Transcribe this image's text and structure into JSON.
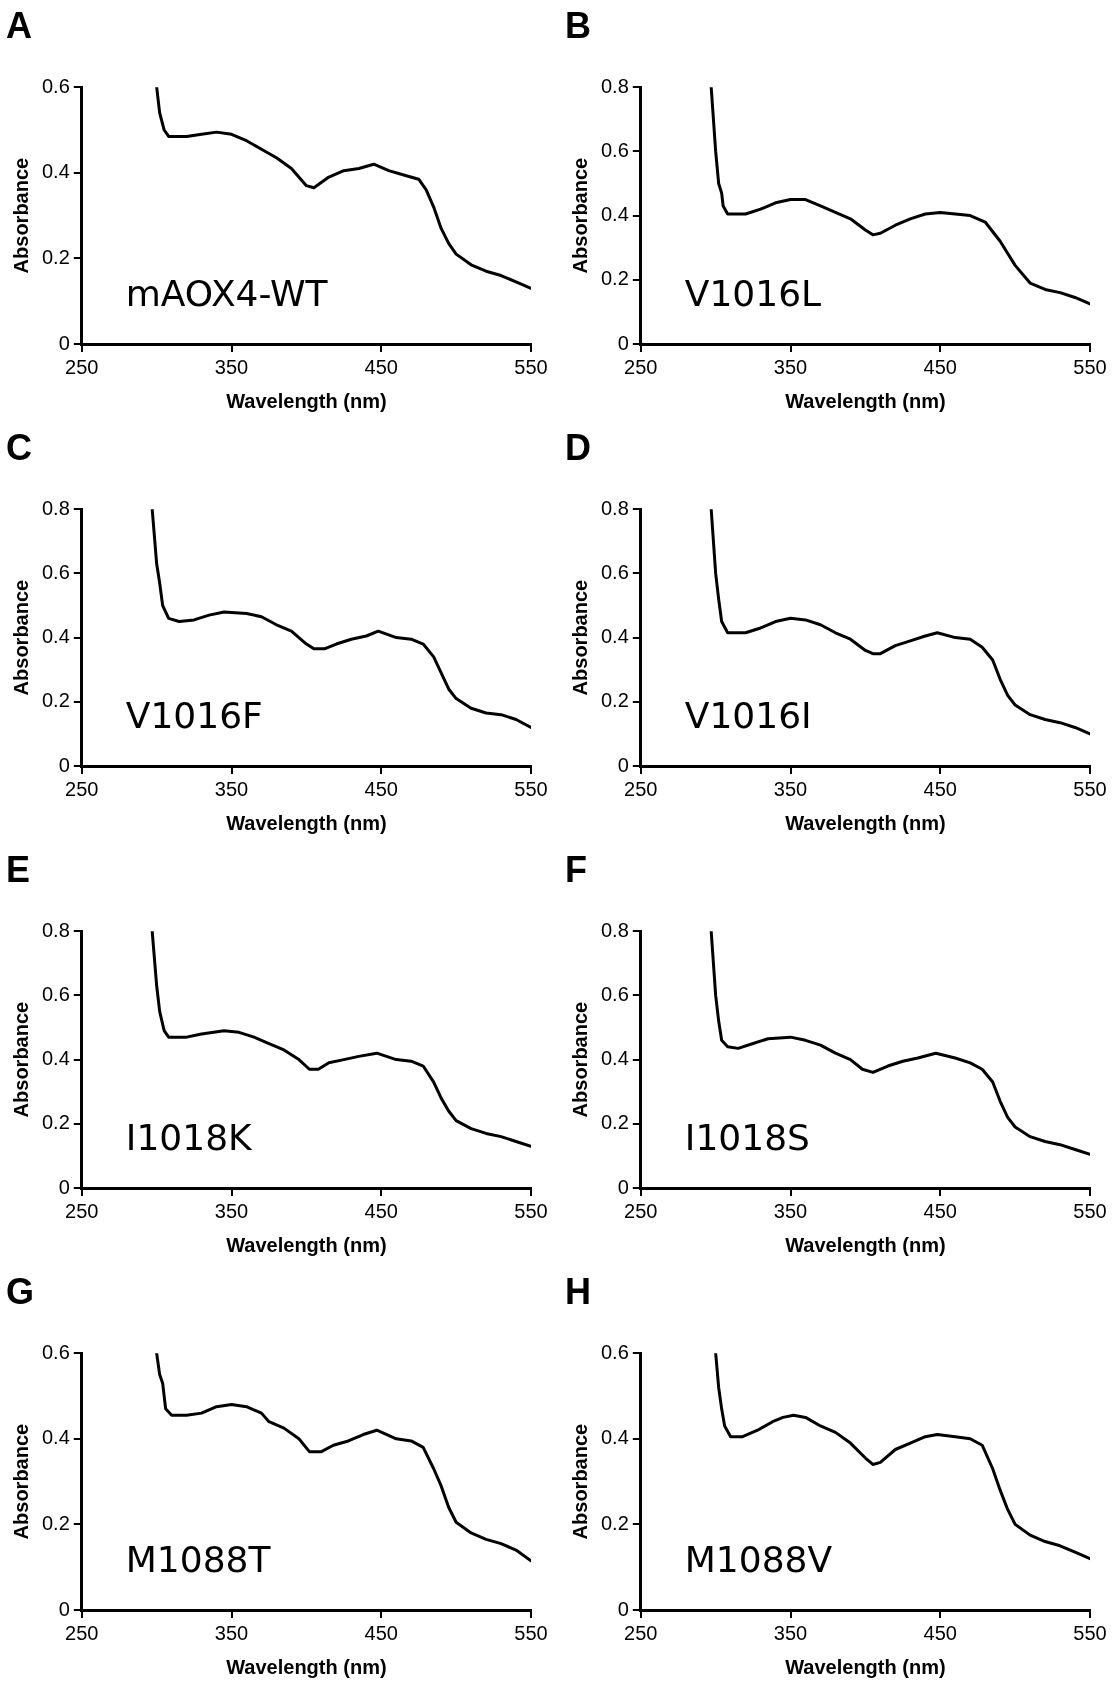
{
  "chart_data": [
    {
      "type": "line",
      "title": "A",
      "xlabel": "Wavelength (nm)",
      "ylabel": "Absorbance",
      "annotations": [
        "mAOX4-WT"
      ],
      "xlim": [
        250,
        550
      ],
      "xticks": [
        250,
        350,
        450,
        550
      ],
      "ylim": [
        0,
        0.6
      ],
      "yticks": [
        0,
        0.2,
        0.4,
        0.6
      ],
      "grid": false,
      "legend": false,
      "marker": "none",
      "line_style": "solid",
      "series": [
        {
          "color": "#000000",
          "x": [
            300,
            302,
            305,
            308,
            320,
            330,
            340,
            350,
            360,
            370,
            380,
            390,
            400,
            405,
            415,
            425,
            435,
            445,
            455,
            465,
            475,
            480,
            485,
            490,
            495,
            500,
            510,
            520,
            530,
            540,
            550
          ],
          "values": [
            0.6,
            0.54,
            0.5,
            0.485,
            0.485,
            0.49,
            0.495,
            0.49,
            0.475,
            0.455,
            0.435,
            0.41,
            0.37,
            0.365,
            0.39,
            0.405,
            0.41,
            0.42,
            0.405,
            0.395,
            0.385,
            0.36,
            0.32,
            0.27,
            0.235,
            0.21,
            0.185,
            0.17,
            0.16,
            0.145,
            0.13
          ]
        }
      ]
    },
    {
      "type": "line",
      "title": "B",
      "xlabel": "Wavelength (nm)",
      "ylabel": "Absorbance",
      "annotations": [
        "V1016L"
      ],
      "xlim": [
        250,
        550
      ],
      "xticks": [
        250,
        350,
        450,
        550
      ],
      "ylim": [
        0,
        0.8
      ],
      "yticks": [
        0,
        0.2,
        0.4,
        0.6,
        0.8
      ],
      "grid": false,
      "legend": false,
      "marker": "none",
      "line_style": "solid",
      "series": [
        {
          "color": "#000000",
          "x": [
            297,
            300,
            302,
            304,
            305,
            308,
            320,
            330,
            340,
            350,
            360,
            370,
            380,
            390,
            400,
            405,
            410,
            420,
            430,
            440,
            450,
            460,
            470,
            480,
            490,
            500,
            510,
            520,
            530,
            540,
            550
          ],
          "values": [
            0.8,
            0.6,
            0.5,
            0.47,
            0.43,
            0.405,
            0.405,
            0.42,
            0.44,
            0.45,
            0.45,
            0.43,
            0.41,
            0.39,
            0.355,
            0.34,
            0.345,
            0.37,
            0.39,
            0.405,
            0.41,
            0.405,
            0.4,
            0.38,
            0.32,
            0.245,
            0.19,
            0.17,
            0.16,
            0.145,
            0.125
          ]
        }
      ]
    },
    {
      "type": "line",
      "title": "C",
      "xlabel": "Wavelength (nm)",
      "ylabel": "Absorbance",
      "annotations": [
        "V1016F"
      ],
      "xlim": [
        250,
        550
      ],
      "xticks": [
        250,
        350,
        450,
        550
      ],
      "ylim": [
        0,
        0.8
      ],
      "yticks": [
        0,
        0.2,
        0.4,
        0.6,
        0.8
      ],
      "grid": false,
      "legend": false,
      "marker": "none",
      "line_style": "solid",
      "series": [
        {
          "color": "#000000",
          "x": [
            297,
            300,
            302,
            304,
            308,
            315,
            325,
            335,
            345,
            360,
            370,
            380,
            390,
            400,
            405,
            412,
            420,
            430,
            440,
            448,
            460,
            470,
            478,
            485,
            490,
            495,
            500,
            510,
            520,
            530,
            540,
            550
          ],
          "values": [
            0.8,
            0.63,
            0.57,
            0.5,
            0.46,
            0.45,
            0.455,
            0.47,
            0.48,
            0.475,
            0.465,
            0.44,
            0.42,
            0.38,
            0.365,
            0.365,
            0.38,
            0.395,
            0.405,
            0.42,
            0.4,
            0.395,
            0.38,
            0.34,
            0.29,
            0.24,
            0.21,
            0.18,
            0.165,
            0.16,
            0.145,
            0.12
          ]
        }
      ]
    },
    {
      "type": "line",
      "title": "D",
      "xlabel": "Wavelength (nm)",
      "ylabel": "Absorbance",
      "annotations": [
        "V1016I"
      ],
      "xlim": [
        250,
        550
      ],
      "xticks": [
        250,
        350,
        450,
        550
      ],
      "ylim": [
        0,
        0.8
      ],
      "yticks": [
        0,
        0.2,
        0.4,
        0.6,
        0.8
      ],
      "grid": false,
      "legend": false,
      "marker": "none",
      "line_style": "solid",
      "series": [
        {
          "color": "#000000",
          "x": [
            297,
            300,
            302,
            304,
            308,
            320,
            330,
            340,
            350,
            360,
            370,
            380,
            390,
            400,
            405,
            410,
            420,
            430,
            440,
            448,
            460,
            470,
            478,
            485,
            490,
            495,
            500,
            510,
            520,
            530,
            540,
            550
          ],
          "values": [
            0.8,
            0.6,
            0.52,
            0.45,
            0.415,
            0.415,
            0.43,
            0.45,
            0.46,
            0.455,
            0.44,
            0.415,
            0.395,
            0.36,
            0.35,
            0.35,
            0.375,
            0.39,
            0.405,
            0.415,
            0.4,
            0.395,
            0.37,
            0.33,
            0.27,
            0.22,
            0.19,
            0.16,
            0.145,
            0.135,
            0.12,
            0.1
          ]
        }
      ]
    },
    {
      "type": "line",
      "title": "E",
      "xlabel": "Wavelength (nm)",
      "ylabel": "Absorbance",
      "annotations": [
        "I1018K"
      ],
      "xlim": [
        250,
        550
      ],
      "xticks": [
        250,
        350,
        450,
        550
      ],
      "ylim": [
        0,
        0.8
      ],
      "yticks": [
        0,
        0.2,
        0.4,
        0.6,
        0.8
      ],
      "grid": false,
      "legend": false,
      "marker": "none",
      "line_style": "solid",
      "series": [
        {
          "color": "#000000",
          "x": [
            297,
            300,
            302,
            305,
            308,
            320,
            330,
            345,
            355,
            365,
            375,
            385,
            395,
            402,
            408,
            415,
            425,
            435,
            447,
            460,
            470,
            478,
            485,
            490,
            495,
            500,
            510,
            520,
            530,
            540,
            550
          ],
          "values": [
            0.8,
            0.63,
            0.55,
            0.49,
            0.47,
            0.47,
            0.48,
            0.49,
            0.485,
            0.47,
            0.45,
            0.43,
            0.4,
            0.37,
            0.37,
            0.39,
            0.4,
            0.41,
            0.42,
            0.4,
            0.395,
            0.38,
            0.33,
            0.28,
            0.24,
            0.21,
            0.185,
            0.17,
            0.16,
            0.145,
            0.13
          ]
        }
      ]
    },
    {
      "type": "line",
      "title": "F",
      "xlabel": "Wavelength (nm)",
      "ylabel": "Absorbance",
      "annotations": [
        "I1018S"
      ],
      "xlim": [
        250,
        550
      ],
      "xticks": [
        250,
        350,
        450,
        550
      ],
      "ylim": [
        0,
        0.8
      ],
      "yticks": [
        0,
        0.2,
        0.4,
        0.6,
        0.8
      ],
      "grid": false,
      "legend": false,
      "marker": "none",
      "line_style": "solid",
      "series": [
        {
          "color": "#000000",
          "x": [
            297,
            300,
            302,
            304,
            308,
            315,
            325,
            335,
            350,
            360,
            370,
            380,
            390,
            398,
            405,
            415,
            425,
            435,
            447,
            460,
            470,
            478,
            485,
            490,
            495,
            500,
            510,
            520,
            530,
            540,
            550
          ],
          "values": [
            0.8,
            0.6,
            0.52,
            0.46,
            0.44,
            0.435,
            0.45,
            0.465,
            0.47,
            0.46,
            0.445,
            0.42,
            0.4,
            0.37,
            0.36,
            0.38,
            0.395,
            0.405,
            0.42,
            0.405,
            0.39,
            0.37,
            0.33,
            0.27,
            0.22,
            0.19,
            0.16,
            0.145,
            0.135,
            0.12,
            0.105
          ]
        }
      ]
    },
    {
      "type": "line",
      "title": "G",
      "xlabel": "Wavelength (nm)",
      "ylabel": "Absorbance",
      "annotations": [
        "M1088T"
      ],
      "xlim": [
        250,
        550
      ],
      "xticks": [
        250,
        350,
        450,
        550
      ],
      "ylim": [
        0,
        0.6
      ],
      "yticks": [
        0,
        0.2,
        0.4,
        0.6
      ],
      "grid": false,
      "legend": false,
      "marker": "none",
      "line_style": "solid",
      "series": [
        {
          "color": "#000000",
          "x": [
            300,
            302,
            304,
            306,
            310,
            320,
            330,
            340,
            350,
            360,
            370,
            375,
            385,
            395,
            402,
            410,
            418,
            428,
            438,
            447,
            460,
            470,
            478,
            485,
            490,
            495,
            500,
            510,
            520,
            530,
            540,
            550
          ],
          "values": [
            0.6,
            0.55,
            0.53,
            0.47,
            0.455,
            0.455,
            0.46,
            0.475,
            0.48,
            0.475,
            0.46,
            0.44,
            0.425,
            0.4,
            0.37,
            0.37,
            0.385,
            0.395,
            0.41,
            0.42,
            0.4,
            0.395,
            0.38,
            0.33,
            0.29,
            0.24,
            0.205,
            0.18,
            0.165,
            0.155,
            0.14,
            0.115
          ]
        }
      ]
    },
    {
      "type": "line",
      "title": "H",
      "xlabel": "Wavelength (nm)",
      "ylabel": "Absorbance",
      "annotations": [
        "M1088V"
      ],
      "xlim": [
        250,
        550
      ],
      "xticks": [
        250,
        350,
        450,
        550
      ],
      "ylim": [
        0,
        0.6
      ],
      "yticks": [
        0,
        0.2,
        0.4,
        0.6
      ],
      "grid": false,
      "legend": false,
      "marker": "none",
      "line_style": "solid",
      "series": [
        {
          "color": "#000000",
          "x": [
            300,
            302,
            304,
            306,
            310,
            318,
            328,
            338,
            345,
            352,
            360,
            370,
            380,
            390,
            400,
            405,
            410,
            420,
            430,
            440,
            448,
            460,
            470,
            478,
            485,
            490,
            495,
            500,
            510,
            520,
            530,
            540,
            550
          ],
          "values": [
            0.6,
            0.52,
            0.47,
            0.43,
            0.405,
            0.405,
            0.42,
            0.44,
            0.45,
            0.455,
            0.45,
            0.43,
            0.415,
            0.39,
            0.355,
            0.34,
            0.345,
            0.375,
            0.39,
            0.405,
            0.41,
            0.405,
            0.4,
            0.385,
            0.33,
            0.28,
            0.235,
            0.2,
            0.175,
            0.16,
            0.15,
            0.135,
            0.12
          ]
        }
      ]
    }
  ]
}
